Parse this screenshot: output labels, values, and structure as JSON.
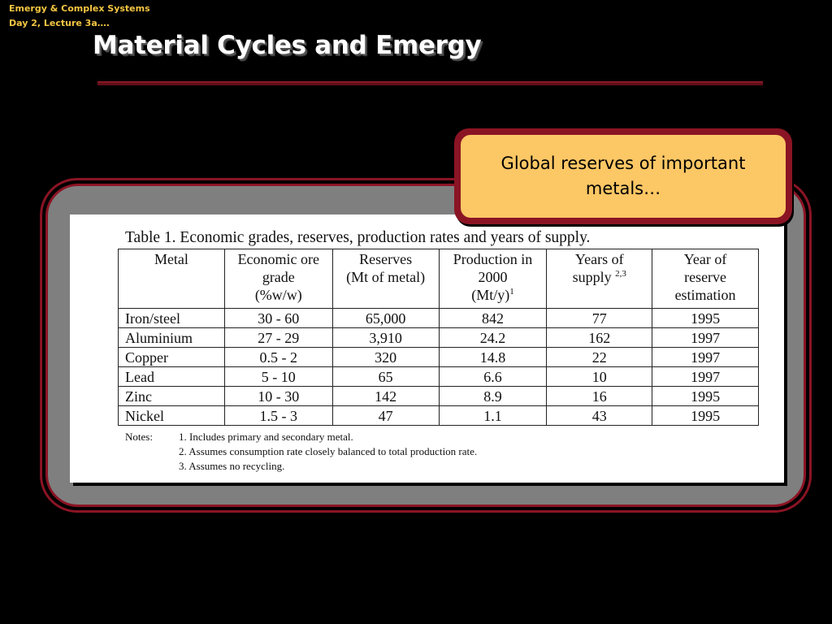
{
  "course": {
    "line1": "Emergy & Complex Systems",
    "line2": "Day 2, Lecture 3a…."
  },
  "slide_title": "Material Cycles and Emergy",
  "callout": {
    "text": "Global reserves of important metals…"
  },
  "colors": {
    "background": "#000000",
    "accent_red": "#8b1424",
    "header_text": "#f5c542",
    "callout_fill": "#fcc765",
    "frame_fill": "#7f7f7f"
  },
  "table": {
    "caption": "Table 1. Economic grades, reserves, production rates and years of supply.",
    "headers": {
      "metal": "Metal",
      "grade_1": "Economic ore",
      "grade_2": "grade",
      "grade_3": "(%w/w)",
      "reserves_1": "Reserves",
      "reserves_2": "(Mt of metal)",
      "production_1": "Production in",
      "production_2": "2000",
      "production_3": "(Mt/y)",
      "production_sup": "1",
      "supply_1": "Years of",
      "supply_2": "supply",
      "supply_sup": "2,3",
      "estimation_1": "Year of",
      "estimation_2": "reserve",
      "estimation_3": "estimation"
    },
    "rows": [
      [
        "Iron/steel",
        "30 - 60",
        "65,000",
        "842",
        "77",
        "1995"
      ],
      [
        "Aluminium",
        "27 - 29",
        "3,910",
        "24.2",
        "162",
        "1997"
      ],
      [
        "Copper",
        "0.5 - 2",
        "320",
        "14.8",
        "22",
        "1997"
      ],
      [
        "Lead",
        "5 - 10",
        "65",
        "6.6",
        "10",
        "1997"
      ],
      [
        "Zinc",
        "10 - 30",
        "142",
        "8.9",
        "16",
        "1995"
      ],
      [
        "Nickel",
        "1.5 - 3",
        "47",
        "1.1",
        "43",
        "1995"
      ]
    ],
    "notes_label": "Notes:",
    "notes": [
      "1. Includes primary and secondary metal.",
      "2. Assumes consumption rate closely balanced to total production rate.",
      "3. Assumes no recycling."
    ]
  }
}
